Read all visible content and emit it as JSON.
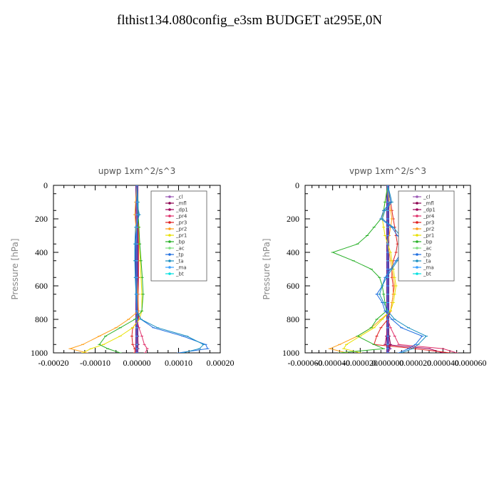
{
  "title": "flthist134.080config_e3sm  BUDGET at295E,0N",
  "legend_names": [
    "_cl",
    "_mfl",
    "_dp1",
    "_pr4",
    "_pr3",
    "_pr2",
    "_pr1",
    "_bp",
    "_ac",
    "_tp",
    "_ta",
    "_ma",
    "_bt"
  ],
  "series_colors": [
    "#9b59b6",
    "#8b0050",
    "#a0005a",
    "#e0306a",
    "#e02020",
    "#ff9f1a",
    "#e8e000",
    "#28b028",
    "#7fe07f",
    "#1e6ee0",
    "#1a8fc0",
    "#3aa0ff",
    "#00e0e0"
  ],
  "chart_data": [
    {
      "type": "line",
      "title": "upwp   1xm^2/s^3",
      "ylabel": "Pressure  [hPa]",
      "xlim": [
        -0.0002,
        0.0002
      ],
      "ylim": [
        1000,
        0
      ],
      "x_ticks": [
        "-0.00020",
        "-0.00010",
        "0.00000",
        "0.00010",
        "0.00020"
      ],
      "x_tick_values": [
        -0.0002,
        -0.0001,
        0,
        0.0001,
        0.0002
      ],
      "y_ticks": [
        "0",
        "200",
        "400",
        "600",
        "800",
        "1000"
      ],
      "y_tick_values": [
        0,
        200,
        400,
        600,
        800,
        1000
      ],
      "legend_position": "top-right",
      "pressure": [
        0,
        100,
        175,
        250,
        350,
        450,
        550,
        650,
        750,
        800,
        850,
        900,
        950,
        975,
        1000
      ],
      "series": [
        {
          "name": "_bt",
          "values": [
            0,
            0,
            0,
            0,
            0,
            0,
            0,
            0,
            0,
            0,
            0,
            0,
            0,
            0,
            0
          ]
        },
        {
          "name": "_cl",
          "values": [
            0,
            0,
            0,
            0,
            0,
            0,
            0,
            0,
            0,
            0,
            0,
            2e-06,
            2e-06,
            3e-06,
            0
          ]
        },
        {
          "name": "_mfl",
          "values": [
            0,
            0,
            0,
            0,
            0,
            0,
            0,
            0,
            0,
            0,
            0,
            2e-06,
            3e-06,
            2e-06,
            0
          ]
        },
        {
          "name": "_dp1",
          "values": [
            0,
            0,
            0,
            0,
            0,
            0,
            0,
            0,
            0,
            0,
            0,
            0,
            -2e-06,
            -3e-06,
            0
          ]
        },
        {
          "name": "_pr4",
          "values": [
            0,
            0,
            -2e-06,
            0,
            0,
            0,
            0,
            0,
            0,
            0,
            5e-06,
            1.2e-05,
            1.8e-05,
            2.5e-05,
            2e-05
          ]
        },
        {
          "name": "_pr3",
          "values": [
            0,
            0,
            0,
            3e-06,
            4e-06,
            4e-06,
            4e-06,
            3e-06,
            3e-06,
            5e-06,
            -1e-05,
            -1.2e-05,
            -1e-05,
            -5e-06,
            -5e-06
          ]
        },
        {
          "name": "_pr2",
          "values": [
            0,
            -3e-06,
            -5e-06,
            -2e-06,
            0,
            0,
            0,
            2e-06,
            4e-06,
            -2e-05,
            -5e-05,
            -9e-05,
            -0.00013,
            -0.00016,
            -0.00012
          ]
        },
        {
          "name": "_pr1",
          "values": [
            0,
            2e-06,
            3e-06,
            5e-06,
            6e-06,
            8e-06,
            1e-05,
            1.2e-05,
            1.2e-05,
            6e-06,
            -1e-05,
            -4e-05,
            -8e-05,
            -0.00011,
            -0.00013
          ]
        },
        {
          "name": "_bp",
          "values": [
            0,
            3e-06,
            3e-06,
            5e-06,
            7e-06,
            1e-05,
            1.3e-05,
            1.5e-05,
            1.2e-05,
            -5e-06,
            -4e-05,
            -7.5e-05,
            -9e-05,
            -7e-05,
            -4e-05
          ]
        },
        {
          "name": "_ac",
          "values": [
            0,
            0,
            0,
            0,
            0,
            0,
            0,
            0,
            0,
            0,
            0,
            0,
            0,
            0,
            0
          ]
        },
        {
          "name": "_tp",
          "values": [
            0,
            2e-06,
            4e-06,
            0,
            -3e-06,
            -4e-06,
            -3e-06,
            -2e-06,
            0,
            1e-05,
            4e-05,
            0.00011,
            0.000165,
            0.00017,
            0.0001
          ]
        },
        {
          "name": "_ta",
          "values": [
            0,
            0,
            6e-06,
            -3e-06,
            -5e-06,
            -5e-06,
            -4e-06,
            -2e-06,
            0,
            1e-05,
            5e-05,
            0.00012,
            0.00016,
            0.00015,
            0.00011
          ]
        },
        {
          "name": "_ma",
          "values": [
            0,
            0,
            0,
            0,
            0,
            0,
            0,
            0,
            0,
            0,
            0,
            0,
            0,
            0,
            0
          ]
        }
      ]
    },
    {
      "type": "line",
      "title": "vpwp   1xm^2/s^3",
      "ylabel": "Pressure  [hPa]",
      "xlim": [
        -6e-05,
        6e-05
      ],
      "ylim": [
        1000,
        0
      ],
      "x_ticks": [
        "-0.000060",
        "-0.000040",
        "-0.000020",
        "0.000000",
        "0.000020",
        "0.000040",
        "0.000060"
      ],
      "x_tick_values": [
        -6e-05,
        -4e-05,
        -2e-05,
        0,
        2e-05,
        4e-05,
        6e-05
      ],
      "y_ticks": [
        "0",
        "200",
        "400",
        "600",
        "800",
        "1000"
      ],
      "y_tick_values": [
        0,
        200,
        400,
        600,
        800,
        1000
      ],
      "legend_position": "top-right",
      "pressure": [
        0,
        100,
        150,
        200,
        250,
        300,
        350,
        400,
        450,
        500,
        550,
        600,
        650,
        700,
        750,
        800,
        850,
        900,
        950,
        975,
        1000
      ],
      "series": [
        {
          "name": "_bt",
          "values": [
            0,
            0,
            0,
            0,
            0,
            0,
            0,
            0,
            0,
            0,
            0,
            0,
            0,
            0,
            0,
            0,
            0,
            0,
            0,
            0,
            0
          ]
        },
        {
          "name": "_cl",
          "values": [
            0,
            0,
            0,
            0,
            0,
            0,
            0,
            0,
            0,
            0,
            0,
            0,
            0,
            0,
            0,
            0,
            0,
            1e-06,
            1e-06,
            2e-06,
            0
          ]
        },
        {
          "name": "_mfl",
          "values": [
            0,
            0,
            0,
            0,
            0,
            0,
            0,
            0,
            0,
            0,
            0,
            0,
            0,
            0,
            0,
            0,
            0,
            1e-06,
            2e-06,
            1e-06,
            0
          ]
        },
        {
          "name": "_dp1",
          "values": [
            0,
            0,
            0,
            0,
            0,
            0,
            0,
            0,
            0,
            0,
            0,
            0,
            0,
            0,
            0,
            0,
            0,
            -1e-06,
            -2e-06,
            3e-05,
            4e-05
          ]
        },
        {
          "name": "_pr4",
          "values": [
            0,
            0,
            0,
            0,
            0,
            0,
            0,
            0,
            0,
            0,
            0,
            0,
            0,
            0,
            0,
            0,
            2e-06,
            5e-06,
            8e-06,
            4e-05,
            5e-05
          ]
        },
        {
          "name": "_pr3",
          "values": [
            0,
            2e-06,
            3e-06,
            4e-06,
            5e-06,
            6e-06,
            7e-06,
            6e-06,
            4e-06,
            3e-06,
            3e-06,
            4e-06,
            4e-06,
            3e-06,
            2e-06,
            0,
            -5e-06,
            -8e-06,
            -1e-05,
            2e-05,
            4.5e-05
          ]
        },
        {
          "name": "_pr2",
          "values": [
            0,
            1e-06,
            2e-06,
            3e-06,
            2e-06,
            1e-06,
            0,
            1e-06,
            2e-06,
            3e-06,
            4e-06,
            5e-06,
            4e-06,
            3e-06,
            2e-06,
            -5e-06,
            -1.2e-05,
            -2.2e-05,
            -3.5e-05,
            -4.2e-05,
            -3e-05
          ]
        },
        {
          "name": "_pr1",
          "values": [
            0,
            -2e-06,
            -3e-06,
            -4e-06,
            -3e-06,
            -2e-06,
            0,
            2e-06,
            3e-06,
            4e-06,
            5e-06,
            6e-06,
            5e-06,
            4e-06,
            2e-06,
            -4e-06,
            -1e-05,
            -2e-05,
            -3e-05,
            -3.2e-05,
            -2e-05
          ]
        },
        {
          "name": "_bp",
          "values": [
            0,
            -2e-06,
            -3e-06,
            -5e-06,
            -1e-05,
            -1.5e-05,
            -2.2e-05,
            -4e-05,
            -2.5e-05,
            -1.2e-05,
            -6e-06,
            -4e-06,
            -3e-06,
            -2e-06,
            -1e-06,
            -8e-06,
            -1.2e-05,
            -2.2e-05,
            -1e-05,
            -3e-06,
            -3.5e-05
          ]
        },
        {
          "name": "_ac",
          "values": [
            0,
            0,
            0,
            0,
            0,
            0,
            0,
            0,
            0,
            0,
            0,
            0,
            0,
            0,
            0,
            0,
            0,
            0,
            0,
            0,
            0
          ]
        },
        {
          "name": "_tp",
          "values": [
            0,
            2e-06,
            -3e-06,
            -5e-06,
            3e-06,
            7e-06,
            1.2e-05,
            1e-05,
            6e-06,
            2e-06,
            -2e-06,
            -4e-06,
            -8e-06,
            -4e-06,
            -2e-06,
            3e-06,
            1e-05,
            2.5e-05,
            2e-05,
            1.5e-05,
            8e-06
          ]
        },
        {
          "name": "_ta",
          "values": [
            0,
            3e-06,
            -2e-06,
            -4e-06,
            4e-06,
            9e-06,
            1.3e-05,
            1.1e-05,
            7e-06,
            3e-06,
            -1e-06,
            -4e-06,
            -6e-06,
            -3e-06,
            0,
            5e-06,
            1.5e-05,
            2.8e-05,
            2.2e-05,
            1.8e-05,
            1e-05
          ]
        },
        {
          "name": "_ma",
          "values": [
            0,
            0,
            0,
            0,
            0,
            0,
            0,
            0,
            0,
            0,
            0,
            0,
            0,
            0,
            0,
            0,
            0,
            0,
            0,
            0,
            0
          ]
        }
      ]
    }
  ]
}
